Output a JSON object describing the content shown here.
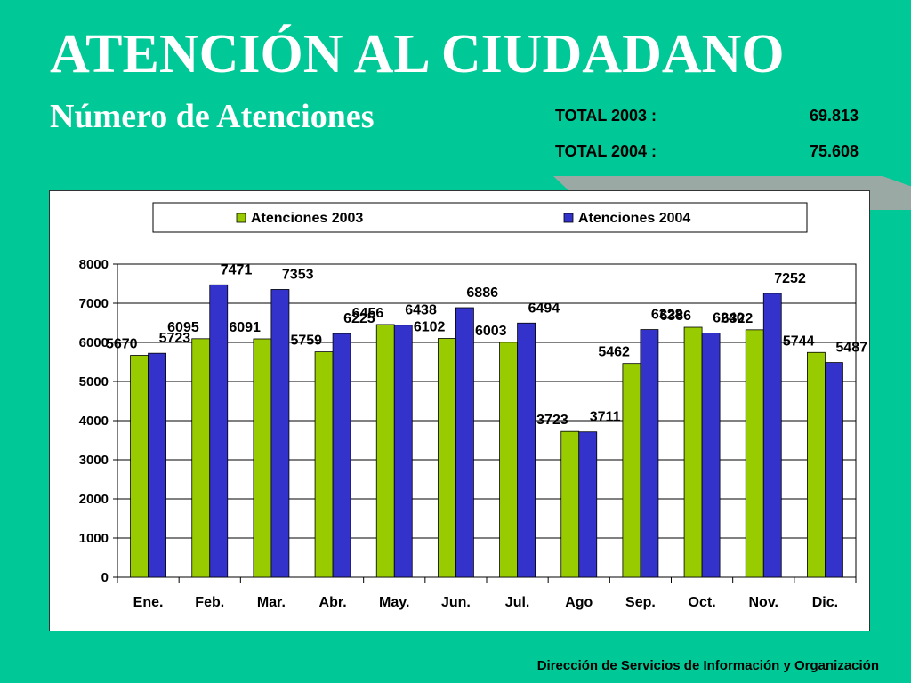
{
  "header": {
    "title": "ATENCIÓN AL CIUDADANO",
    "subtitle": "Número de Atenciones"
  },
  "totals": [
    {
      "label": "TOTAL 2003 :",
      "value": "69.813"
    },
    {
      "label": "TOTAL 2004 :",
      "value": "75.608"
    }
  ],
  "footer": "Dirección de Servicios de  Información y Organización",
  "colors": {
    "background": "#00c896",
    "series_2003": "#99cc00",
    "series_2004": "#3333cc"
  },
  "chart_data": {
    "type": "bar",
    "categories": [
      "Ene.",
      "Feb.",
      "Mar.",
      "Abr.",
      "May.",
      "Jun.",
      "Jul.",
      "Ago",
      "Sep.",
      "Oct.",
      "Nov.",
      "Dic."
    ],
    "series": [
      {
        "name": "Atenciones 2003",
        "values": [
          5670,
          6095,
          6091,
          5759,
          6456,
          6102,
          6003,
          3723,
          5462,
          6386,
          6322,
          5744
        ]
      },
      {
        "name": "Atenciones 2004",
        "values": [
          5723,
          7471,
          7353,
          6225,
          6438,
          6886,
          6494,
          3711,
          6328,
          6240,
          7252,
          5487
        ]
      }
    ],
    "ylim": [
      0,
      8000
    ],
    "yticks": [
      0,
      1000,
      2000,
      3000,
      4000,
      5000,
      6000,
      7000,
      8000
    ],
    "grid": true,
    "legend_position": "top"
  }
}
